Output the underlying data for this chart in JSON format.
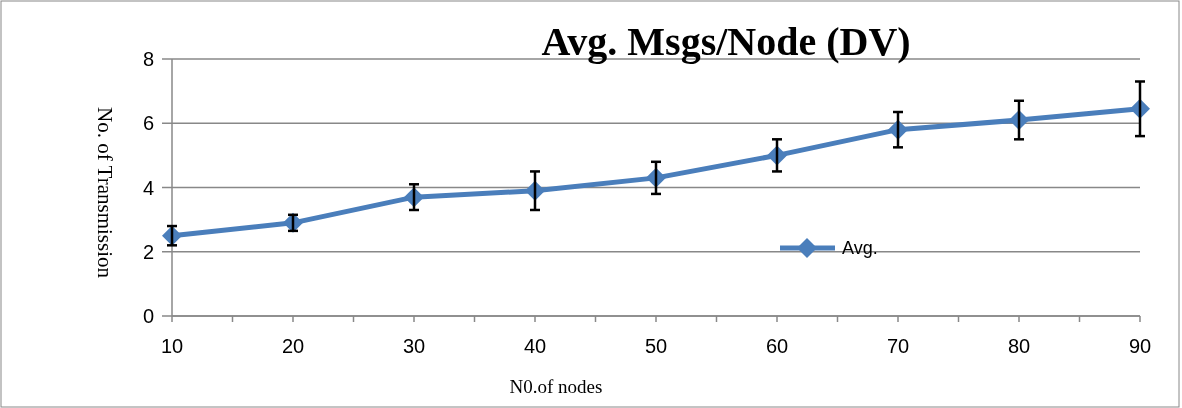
{
  "chart_data": {
    "type": "line",
    "title": "Avg. Msgs/Node (DV)",
    "xlabel": "N0.of nodes",
    "ylabel": "No. of Transmission",
    "categories": [
      "10",
      "20",
      "30",
      "40",
      "50",
      "60",
      "70",
      "80",
      "90"
    ],
    "series": [
      {
        "name": "Avg.",
        "color": "#4a7ebb",
        "values": [
          2.5,
          2.9,
          3.7,
          3.9,
          4.3,
          5.0,
          5.8,
          6.1,
          6.45
        ],
        "errors": [
          0.3,
          0.25,
          0.4,
          0.6,
          0.5,
          0.5,
          0.55,
          0.6,
          0.85
        ]
      }
    ],
    "ylim": [
      0,
      8
    ],
    "yticks": [
      0,
      2,
      4,
      6,
      8
    ],
    "grid": "y",
    "legend": "right",
    "marker": "diamond",
    "line_style": "solid"
  }
}
